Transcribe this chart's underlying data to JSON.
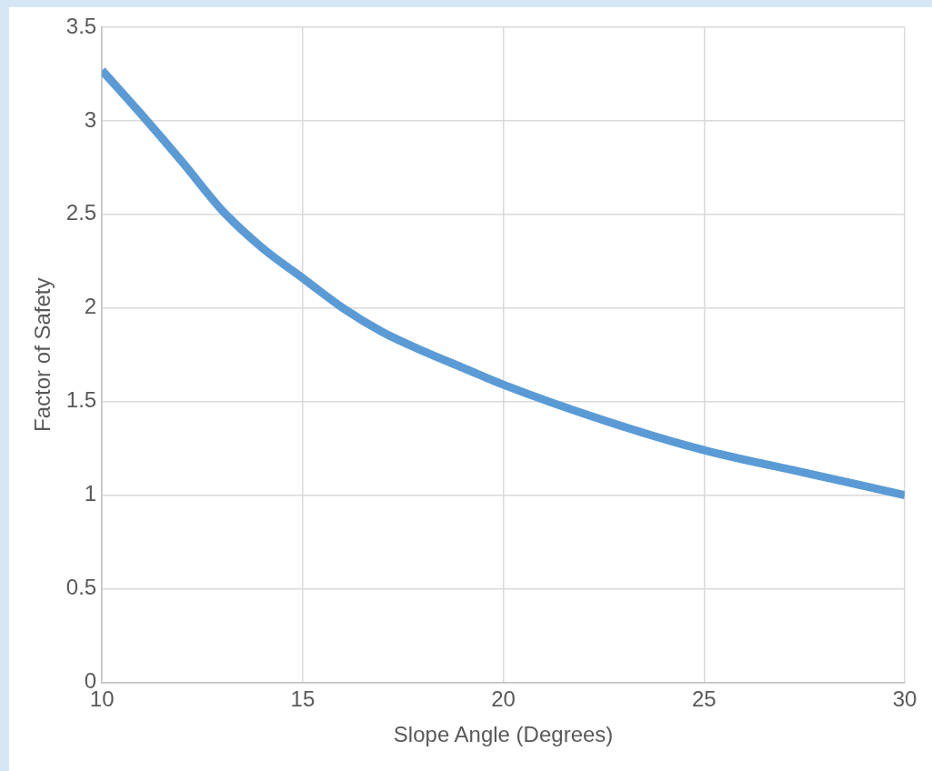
{
  "chart_data": {
    "type": "line",
    "xlabel": "Slope Angle (Degrees)",
    "ylabel": "Factor of Safety",
    "x": [
      10,
      11,
      12,
      13,
      14,
      15,
      16,
      17,
      18,
      19,
      20,
      22.5,
      25,
      27.5,
      30
    ],
    "series": [
      {
        "color": "#5b9bd5",
        "values": [
          3.27,
          3.03,
          2.78,
          2.52,
          2.32,
          2.16,
          2.0,
          1.87,
          1.77,
          1.68,
          1.59,
          1.4,
          1.24,
          1.12,
          1.0
        ]
      }
    ],
    "xlim": [
      10,
      30
    ],
    "xticks": [
      10,
      15,
      20,
      25,
      30
    ],
    "ylim": [
      0,
      3.5
    ],
    "yticks": [
      0,
      0.5,
      1,
      1.5,
      2,
      2.5,
      3,
      3.5
    ],
    "grid": true,
    "legend": false,
    "marker": "none",
    "line_style": "solid"
  }
}
